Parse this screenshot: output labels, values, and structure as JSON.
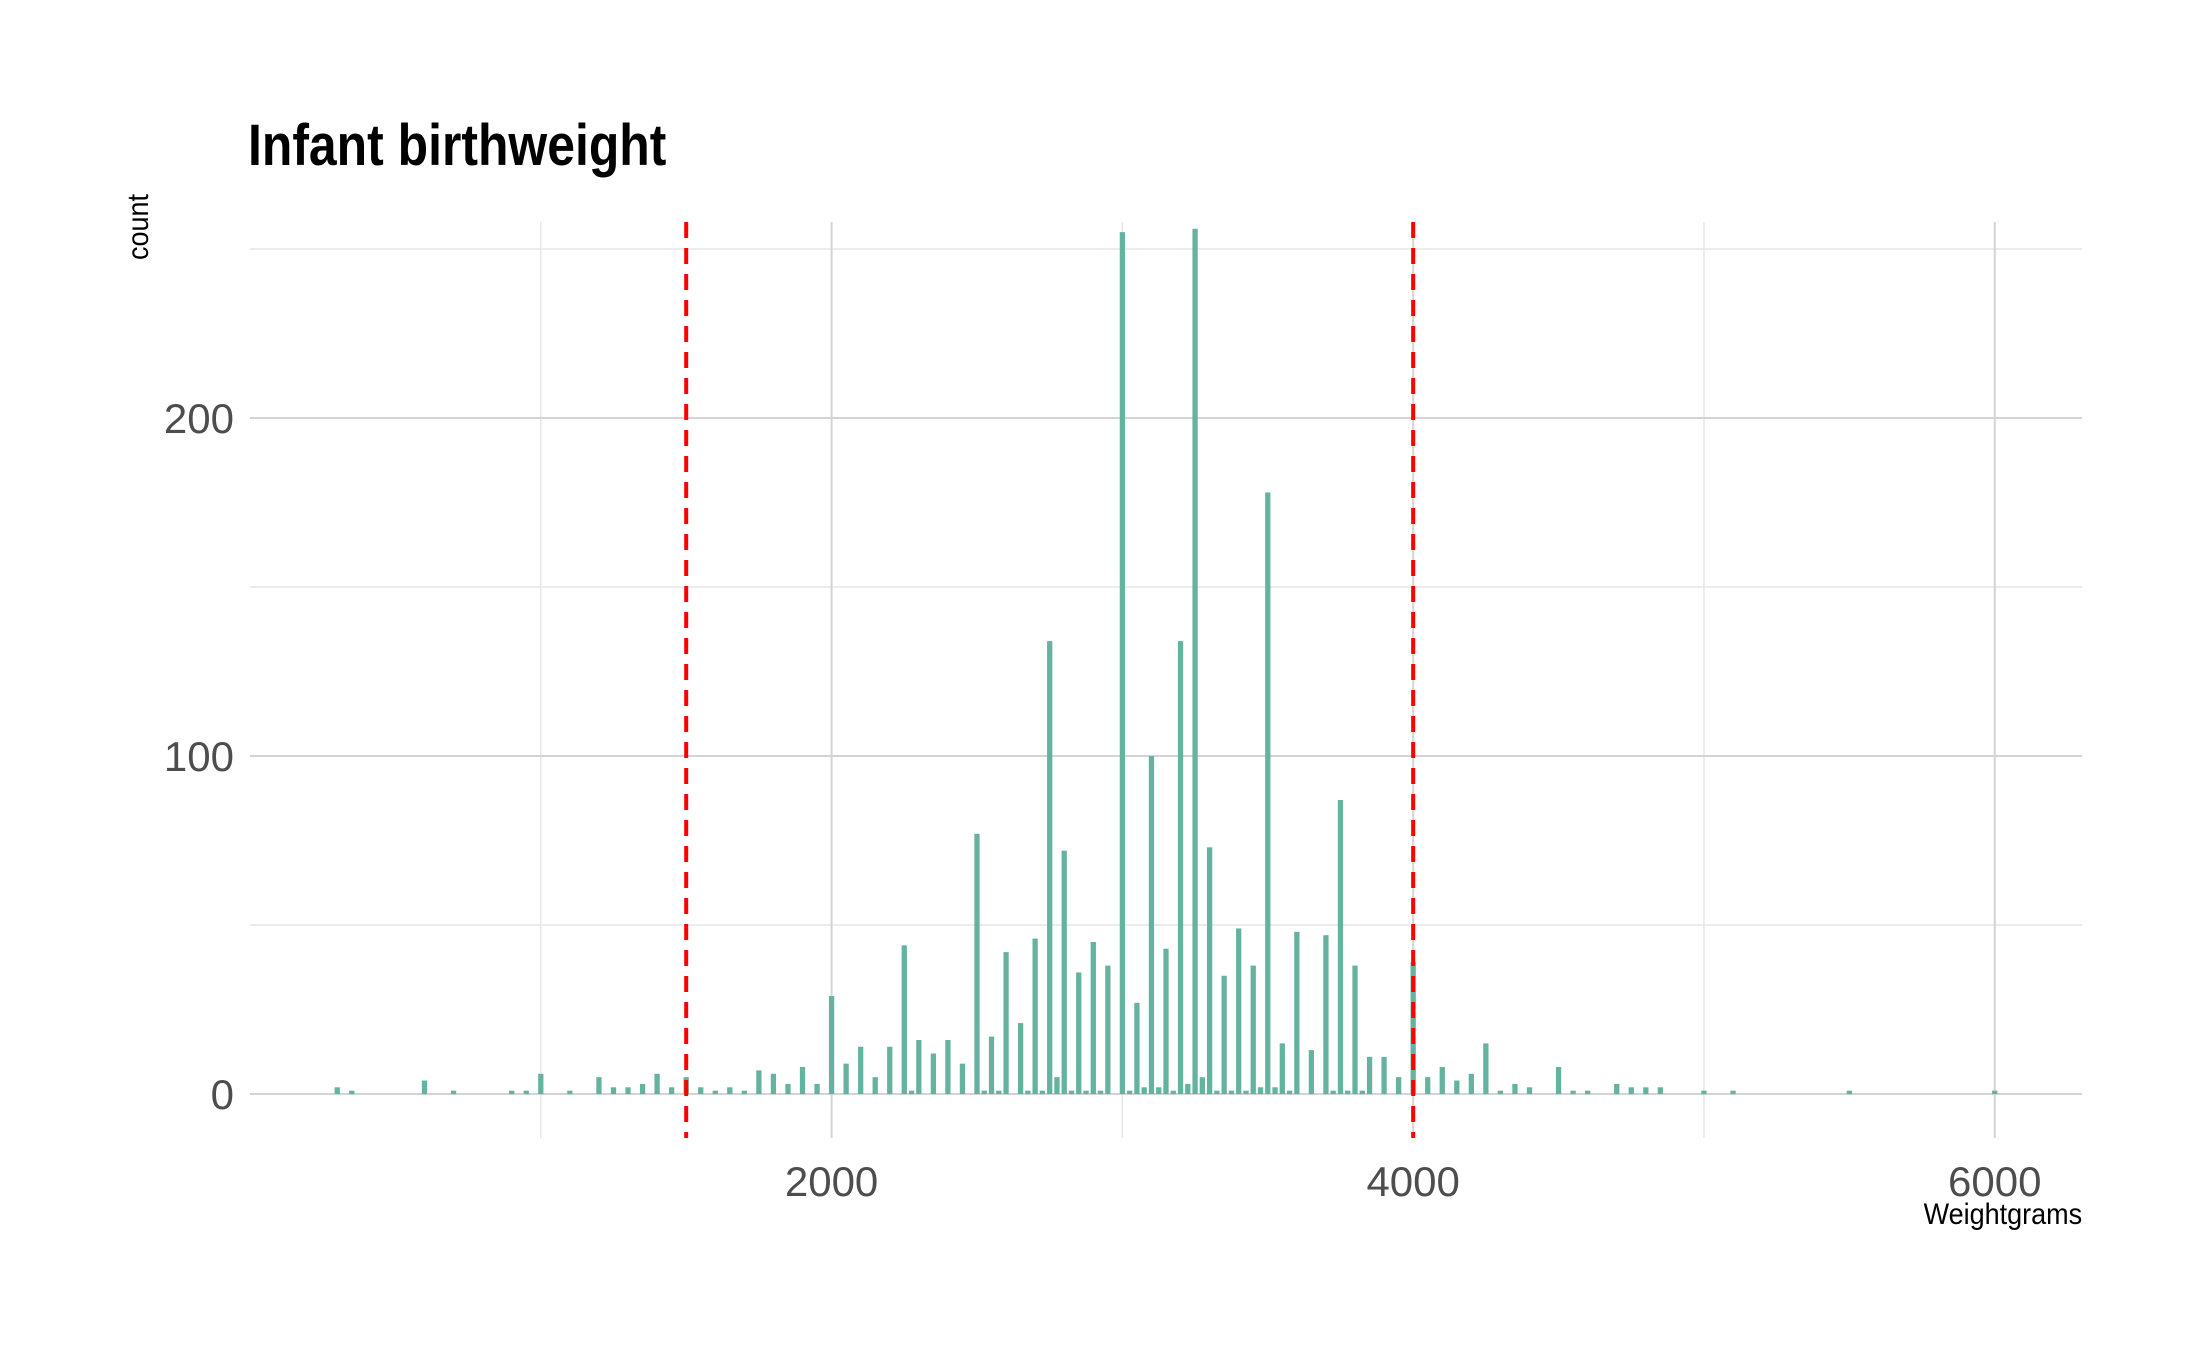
{
  "chart_data": {
    "type": "bar",
    "title": "Infant birthweight",
    "xlabel": "Weightgrams",
    "ylabel": "count",
    "xlim": [
      0,
      6300
    ],
    "ylim": [
      -13,
      258
    ],
    "x_ticks": [
      2000,
      4000,
      6000
    ],
    "x_tick_labels": [
      "2000",
      "4000",
      "6000"
    ],
    "y_ticks": [
      0,
      100,
      200
    ],
    "y_tick_labels": [
      "0",
      "100",
      "200"
    ],
    "grid": true,
    "bar_color": "#66b2a0",
    "bin_width": 25,
    "vlines": [
      {
        "x": 1500,
        "color": "#ff0000",
        "style": "dashed"
      },
      {
        "x": 4000,
        "color": "#ff0000",
        "style": "dashed"
      }
    ],
    "bars": [
      {
        "x": 300,
        "y": 2
      },
      {
        "x": 350,
        "y": 1
      },
      {
        "x": 600,
        "y": 4
      },
      {
        "x": 700,
        "y": 1
      },
      {
        "x": 900,
        "y": 1
      },
      {
        "x": 950,
        "y": 1
      },
      {
        "x": 1000,
        "y": 6
      },
      {
        "x": 1100,
        "y": 1
      },
      {
        "x": 1200,
        "y": 5
      },
      {
        "x": 1250,
        "y": 2
      },
      {
        "x": 1300,
        "y": 2
      },
      {
        "x": 1350,
        "y": 3
      },
      {
        "x": 1400,
        "y": 6
      },
      {
        "x": 1450,
        "y": 2
      },
      {
        "x": 1500,
        "y": 5
      },
      {
        "x": 1550,
        "y": 2
      },
      {
        "x": 1600,
        "y": 1
      },
      {
        "x": 1650,
        "y": 2
      },
      {
        "x": 1700,
        "y": 1
      },
      {
        "x": 1750,
        "y": 7
      },
      {
        "x": 1800,
        "y": 6
      },
      {
        "x": 1850,
        "y": 3
      },
      {
        "x": 1900,
        "y": 8
      },
      {
        "x": 1950,
        "y": 3
      },
      {
        "x": 2000,
        "y": 29
      },
      {
        "x": 2050,
        "y": 9
      },
      {
        "x": 2100,
        "y": 14
      },
      {
        "x": 2150,
        "y": 5
      },
      {
        "x": 2200,
        "y": 14
      },
      {
        "x": 2250,
        "y": 44
      },
      {
        "x": 2275,
        "y": 1
      },
      {
        "x": 2300,
        "y": 16
      },
      {
        "x": 2350,
        "y": 12
      },
      {
        "x": 2400,
        "y": 16
      },
      {
        "x": 2450,
        "y": 9
      },
      {
        "x": 2500,
        "y": 77
      },
      {
        "x": 2525,
        "y": 1
      },
      {
        "x": 2550,
        "y": 17
      },
      {
        "x": 2575,
        "y": 1
      },
      {
        "x": 2600,
        "y": 42
      },
      {
        "x": 2650,
        "y": 21
      },
      {
        "x": 2675,
        "y": 1
      },
      {
        "x": 2700,
        "y": 46
      },
      {
        "x": 2725,
        "y": 1
      },
      {
        "x": 2750,
        "y": 134
      },
      {
        "x": 2775,
        "y": 5
      },
      {
        "x": 2800,
        "y": 72
      },
      {
        "x": 2825,
        "y": 1
      },
      {
        "x": 2850,
        "y": 36
      },
      {
        "x": 2875,
        "y": 1
      },
      {
        "x": 2900,
        "y": 45
      },
      {
        "x": 2925,
        "y": 1
      },
      {
        "x": 2950,
        "y": 38
      },
      {
        "x": 3000,
        "y": 255
      },
      {
        "x": 3025,
        "y": 1
      },
      {
        "x": 3050,
        "y": 27
      },
      {
        "x": 3075,
        "y": 2
      },
      {
        "x": 3100,
        "y": 100
      },
      {
        "x": 3125,
        "y": 2
      },
      {
        "x": 3150,
        "y": 43
      },
      {
        "x": 3175,
        "y": 1
      },
      {
        "x": 3200,
        "y": 134
      },
      {
        "x": 3225,
        "y": 3
      },
      {
        "x": 3250,
        "y": 256
      },
      {
        "x": 3275,
        "y": 5
      },
      {
        "x": 3300,
        "y": 73
      },
      {
        "x": 3325,
        "y": 1
      },
      {
        "x": 3350,
        "y": 35
      },
      {
        "x": 3375,
        "y": 1
      },
      {
        "x": 3400,
        "y": 49
      },
      {
        "x": 3425,
        "y": 1
      },
      {
        "x": 3450,
        "y": 38
      },
      {
        "x": 3475,
        "y": 2
      },
      {
        "x": 3500,
        "y": 178
      },
      {
        "x": 3525,
        "y": 2
      },
      {
        "x": 3550,
        "y": 15
      },
      {
        "x": 3575,
        "y": 1
      },
      {
        "x": 3600,
        "y": 48
      },
      {
        "x": 3650,
        "y": 13
      },
      {
        "x": 3700,
        "y": 47
      },
      {
        "x": 3725,
        "y": 1
      },
      {
        "x": 3750,
        "y": 87
      },
      {
        "x": 3775,
        "y": 1
      },
      {
        "x": 3800,
        "y": 38
      },
      {
        "x": 3825,
        "y": 1
      },
      {
        "x": 3850,
        "y": 11
      },
      {
        "x": 3900,
        "y": 11
      },
      {
        "x": 3950,
        "y": 5
      },
      {
        "x": 4000,
        "y": 39
      },
      {
        "x": 4050,
        "y": 5
      },
      {
        "x": 4100,
        "y": 8
      },
      {
        "x": 4150,
        "y": 4
      },
      {
        "x": 4200,
        "y": 6
      },
      {
        "x": 4250,
        "y": 15
      },
      {
        "x": 4300,
        "y": 1
      },
      {
        "x": 4350,
        "y": 3
      },
      {
        "x": 4400,
        "y": 2
      },
      {
        "x": 4500,
        "y": 8
      },
      {
        "x": 4550,
        "y": 1
      },
      {
        "x": 4600,
        "y": 1
      },
      {
        "x": 4700,
        "y": 3
      },
      {
        "x": 4750,
        "y": 2
      },
      {
        "x": 4800,
        "y": 2
      },
      {
        "x": 4850,
        "y": 2
      },
      {
        "x": 5000,
        "y": 1
      },
      {
        "x": 5100,
        "y": 1
      },
      {
        "x": 5500,
        "y": 1
      },
      {
        "x": 6000,
        "y": 1
      }
    ]
  }
}
